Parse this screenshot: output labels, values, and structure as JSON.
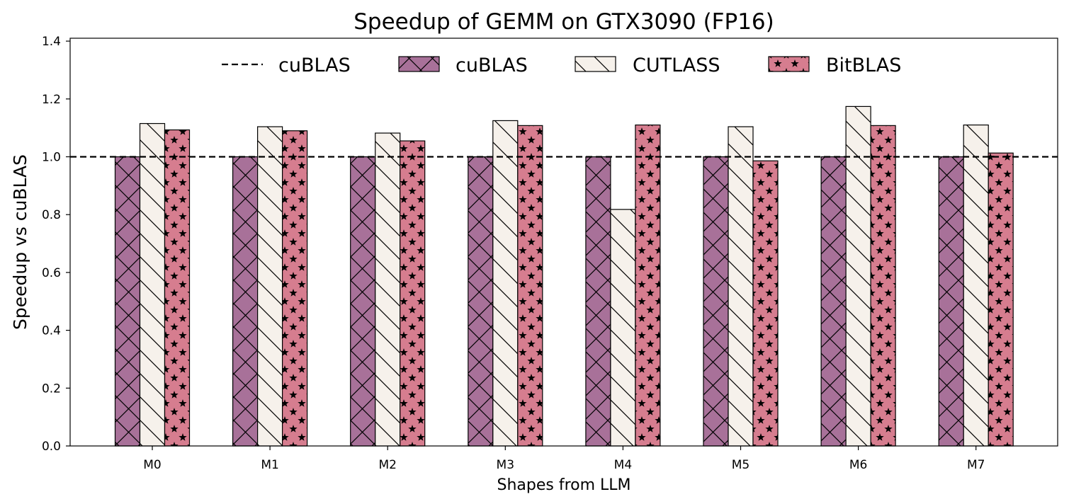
{
  "chart_data": {
    "type": "bar",
    "title": "Speedup of GEMM on GTX3090 (FP16)",
    "xlabel": "Shapes from LLM",
    "ylabel": "Speedup vs cuBLAS",
    "categories": [
      "M0",
      "M1",
      "M2",
      "M3",
      "M4",
      "M5",
      "M6",
      "M7"
    ],
    "ylim": [
      0,
      1.41
    ],
    "yticks": [
      "0.0",
      "0.2",
      "0.4",
      "0.6",
      "0.8",
      "1.0",
      "1.2",
      "1.4"
    ],
    "baseline": {
      "name": "cuBLAS",
      "value": 1.0,
      "style": "dashed",
      "color": "#000000"
    },
    "series": [
      {
        "name": "cuBLAS",
        "values": [
          1.0,
          1.0,
          1.0,
          1.0,
          1.0,
          1.0,
          1.0,
          1.0
        ],
        "color": "#a87199",
        "hatch": "cross"
      },
      {
        "name": "CUTLASS",
        "values": [
          1.115,
          1.104,
          1.082,
          1.125,
          0.818,
          1.104,
          1.174,
          1.11
        ],
        "color": "#f6f1eb",
        "hatch": "backslash"
      },
      {
        "name": "BitBLAS",
        "values": [
          1.093,
          1.09,
          1.055,
          1.108,
          1.11,
          0.986,
          1.108,
          1.013
        ],
        "color": "#d67d8f",
        "hatch": "star"
      }
    ],
    "legend": "top-center",
    "grid": false
  }
}
